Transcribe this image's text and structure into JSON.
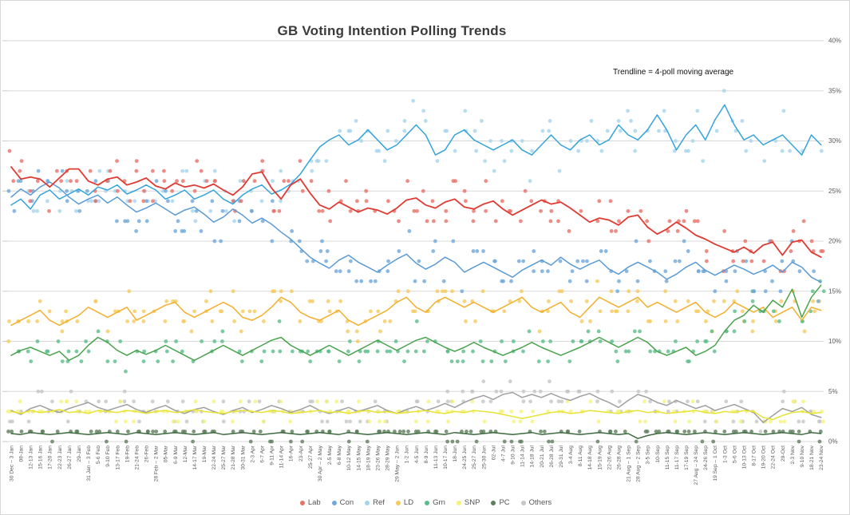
{
  "title": "GB Voting Intention Polling Trends",
  "annotation": "Trendline = 4-poll moving average",
  "chart_data": {
    "type": "scatter",
    "trendline": "4-poll moving average",
    "grid": true,
    "legend_position": "bottom",
    "y_axis": {
      "min": 0,
      "max": 40,
      "step": 5,
      "suffix": "%",
      "tick_values": [
        40,
        35,
        30,
        25,
        20,
        15,
        10,
        5,
        0
      ],
      "tick_labels": [
        "40%",
        "35%",
        "30%",
        "25%",
        "20%",
        "15%",
        "10%",
        "5%",
        "0%"
      ]
    },
    "categories": [
      "30 Dec – 3 Jan",
      "08-Jan",
      "12-13 Jan",
      "15-16 Jan",
      "17-20 Jan",
      "22-23 Jan",
      "26-27 Jan",
      "29-Jan",
      "31 Jan – 3 Feb",
      "5-6 Feb",
      "9-10 Feb",
      "13-17 Feb",
      "19-Feb",
      "21-24 Feb",
      "26-Feb",
      "28 Feb – 2 Mar",
      "05-Mar",
      "6-9 Mar",
      "12-Mar",
      "14-17 Mar",
      "19-Mar",
      "22-24 Mar",
      "25-27 Mar",
      "21-28 Mar",
      "30-31 Mar",
      "2-3 Apr",
      "6-7 Apr",
      "9-11 Apr",
      "11-14 Apr",
      "16-Apr",
      "23-Apr",
      "25-27 Apr",
      "30 Apr – 2 May",
      "2-5 May",
      "6-8 May",
      "10-12 May",
      "14-15 May",
      "18-19 May",
      "23-26 May",
      "28-29 May",
      "29 May – 2 Jun",
      "1-2 Jun",
      "4-5 Jun",
      "8-9 Jun",
      "11-13 Jun",
      "10-17 Jun",
      "18-Jun",
      "24-25 Jun",
      "25-27 Jun",
      "25-30 Jun",
      "02-Jul",
      "4-7 Jul",
      "9-10 Jul",
      "11-14 Jul",
      "14-18 Jul",
      "20-21 Jul",
      "26-28 Jul",
      "29-31 Jul",
      "3-4 Aug",
      "8-11 Aug",
      "14-18 Aug",
      "15-19 Aug",
      "22-26 Aug",
      "26-28 Aug",
      "21 Aug – 1 Sep",
      "28 Aug – 2 Sep",
      "3-5 Sep",
      "10-Sep",
      "11-15 Sep",
      "11-17 Sep",
      "17-19 Sep",
      "27 Aug – 24 Sep",
      "24-26 Sep",
      "19 Sep – 1 Oct",
      "1-3 Oct",
      "5-6 Oct",
      "10-13 Oct",
      "8-17 Oct",
      "19-20 Oct",
      "22-24 Oct",
      "29-Oct",
      "2-3 Nov",
      "9-10 Nov",
      "18-21 Nov",
      "23-24 Nov"
    ],
    "series": [
      {
        "name": "Lab",
        "line_color": "#e03b32",
        "point_color": "#e97168",
        "point_spread": 2.2,
        "trend": [
          27.4,
          26.2,
          26.4,
          26.2,
          25.4,
          26.3,
          27.2,
          27.2,
          26.0,
          25.6,
          26.2,
          26.4,
          25.6,
          25.9,
          26.3,
          25.5,
          25.2,
          25.8,
          25.4,
          25.6,
          25.3,
          25.7,
          25.1,
          24.6,
          25.4,
          26.7,
          26.9,
          25.3,
          24.2,
          25.6,
          26.2,
          24.8,
          23.6,
          23.2,
          23.9,
          23.4,
          22.9,
          23.3,
          23.1,
          22.7,
          23.3,
          24.1,
          24.3,
          23.6,
          23.3,
          23.9,
          24.2,
          23.4,
          23.2,
          23.7,
          24.0,
          23.2,
          22.6,
          23.1,
          23.6,
          24.1,
          23.7,
          23.9,
          23.3,
          22.6,
          21.9,
          22.3,
          22.1,
          21.6,
          22.4,
          22.6,
          21.4,
          20.7,
          21.2,
          21.9,
          21.3,
          20.6,
          20.2,
          19.7,
          19.3,
          18.9,
          19.4,
          18.8,
          19.6,
          19.9,
          18.6,
          19.9,
          20.1,
          18.9,
          18.4
        ]
      },
      {
        "name": "Con",
        "line_color": "#5b9bd5",
        "point_color": "#6fa8db",
        "point_spread": 2.2,
        "trend": [
          24.4,
          25.2,
          24.6,
          25.4,
          25.9,
          25.3,
          24.4,
          23.7,
          24.2,
          24.6,
          23.8,
          24.4,
          23.6,
          22.9,
          23.3,
          23.8,
          23.2,
          22.6,
          23.1,
          23.4,
          22.7,
          21.9,
          22.4,
          23.2,
          22.6,
          21.8,
          22.3,
          21.7,
          20.9,
          20.2,
          19.3,
          18.4,
          17.8,
          17.3,
          18.1,
          18.6,
          17.9,
          17.4,
          16.9,
          17.6,
          18.2,
          18.7,
          17.8,
          17.2,
          17.7,
          18.4,
          17.9,
          16.9,
          17.4,
          17.9,
          17.4,
          16.9,
          16.4,
          17.1,
          17.6,
          18.1,
          17.6,
          18.4,
          17.7,
          17.2,
          17.7,
          18.1,
          17.2,
          16.7,
          17.4,
          17.9,
          17.4,
          16.9,
          16.2,
          16.7,
          17.4,
          17.9,
          17.1,
          16.6,
          17.1,
          17.6,
          17.2,
          16.7,
          17.1,
          17.6,
          16.9,
          17.9,
          17.4,
          16.4,
          15.9
        ]
      },
      {
        "name": "Ref",
        "line_color": "#35a3dc",
        "point_color": "#a5d5ee",
        "point_spread": 2.2,
        "trend": [
          23.6,
          24.2,
          23.2,
          24.6,
          25.1,
          24.2,
          24.7,
          25.2,
          24.6,
          25.4,
          25.1,
          25.6,
          24.7,
          25.1,
          25.6,
          25.1,
          24.2,
          24.6,
          25.1,
          24.2,
          24.6,
          25.1,
          24.2,
          23.7,
          24.6,
          25.2,
          25.6,
          24.7,
          25.1,
          25.7,
          26.7,
          28.1,
          29.4,
          30.1,
          30.6,
          29.6,
          30.1,
          31.1,
          30.1,
          29.1,
          29.6,
          30.6,
          31.6,
          30.6,
          28.6,
          29.1,
          30.6,
          31.1,
          30.1,
          29.6,
          29.1,
          29.6,
          30.1,
          29.1,
          28.6,
          29.6,
          30.6,
          29.6,
          29.1,
          30.1,
          30.6,
          29.6,
          30.1,
          31.6,
          30.6,
          30.1,
          31.1,
          32.6,
          31.1,
          29.1,
          30.6,
          31.6,
          30.1,
          32.1,
          33.6,
          31.6,
          30.1,
          30.6,
          29.6,
          30.1,
          30.6,
          29.6,
          28.6,
          30.6,
          29.6
        ]
      },
      {
        "name": "LD",
        "line_color": "#f2b02e",
        "point_color": "#f6c95c",
        "point_spread": 1.6,
        "trend": [
          11.6,
          12.1,
          12.6,
          13.1,
          12.1,
          11.6,
          12.1,
          12.6,
          13.4,
          12.9,
          12.4,
          12.9,
          13.4,
          12.1,
          12.6,
          13.1,
          13.6,
          13.9,
          12.9,
          12.4,
          12.9,
          13.4,
          13.9,
          13.4,
          12.4,
          12.1,
          12.6,
          13.4,
          14.4,
          13.9,
          12.9,
          12.4,
          12.1,
          12.6,
          13.1,
          12.1,
          11.6,
          12.1,
          12.6,
          13.1,
          13.9,
          14.4,
          13.4,
          12.9,
          13.9,
          14.4,
          13.9,
          13.4,
          13.9,
          13.4,
          12.9,
          13.4,
          13.9,
          14.4,
          13.4,
          12.9,
          13.4,
          13.9,
          12.9,
          12.4,
          13.4,
          14.4,
          13.9,
          13.4,
          13.9,
          14.4,
          13.4,
          13.9,
          13.4,
          12.9,
          13.4,
          13.9,
          12.9,
          12.4,
          12.9,
          13.9,
          13.4,
          12.9,
          13.4,
          12.4,
          12.9,
          13.4,
          12.1,
          13.4,
          13.1
        ]
      },
      {
        "name": "Grn",
        "line_color": "#4aa34d",
        "point_color": "#5bbd8b",
        "point_spread": 1.5,
        "trend": [
          8.6,
          9.1,
          9.4,
          9.0,
          8.6,
          9.0,
          8.1,
          8.6,
          9.6,
          10.4,
          9.9,
          9.1,
          8.6,
          9.1,
          8.7,
          9.1,
          9.6,
          9.1,
          8.6,
          8.1,
          8.6,
          9.1,
          9.6,
          9.1,
          8.6,
          9.1,
          9.6,
          10.1,
          10.4,
          9.6,
          9.1,
          8.6,
          9.1,
          9.6,
          9.1,
          8.6,
          9.1,
          9.6,
          10.1,
          9.6,
          9.1,
          9.6,
          10.1,
          10.4,
          9.9,
          9.4,
          9.0,
          9.4,
          9.9,
          9.4,
          9.0,
          8.6,
          9.0,
          9.4,
          9.9,
          9.4,
          9.0,
          8.6,
          9.0,
          9.4,
          9.9,
          10.4,
          9.9,
          9.4,
          9.9,
          10.4,
          9.9,
          9.0,
          8.6,
          9.0,
          9.4,
          8.6,
          9.0,
          9.6,
          11.0,
          12.1,
          12.6,
          13.6,
          12.9,
          14.1,
          13.4,
          15.2,
          12.4,
          14.4,
          15.6
        ]
      },
      {
        "name": "SNP",
        "line_color": "#e8e337",
        "point_color": "#f5f27a",
        "point_spread": 0.8,
        "trend": [
          3.0,
          2.8,
          3.1,
          2.9,
          3.0,
          3.2,
          2.9,
          3.0,
          2.8,
          3.1,
          3.0,
          2.9,
          3.1,
          3.0,
          2.8,
          3.0,
          3.1,
          2.9,
          3.0,
          3.2,
          3.0,
          2.9,
          2.8,
          3.0,
          3.1,
          3.0,
          2.9,
          3.1,
          3.0,
          2.8,
          2.9,
          3.0,
          3.1,
          2.9,
          3.0,
          2.8,
          3.0,
          3.1,
          2.9,
          3.0,
          2.8,
          2.9,
          3.0,
          3.1,
          2.9,
          2.8,
          3.0,
          2.9,
          3.1,
          3.0,
          2.9,
          2.7,
          2.5,
          2.3,
          2.5,
          2.7,
          2.9,
          3.0,
          2.8,
          2.9,
          3.1,
          3.0,
          2.9,
          2.8,
          3.0,
          3.1,
          2.9,
          3.0,
          2.8,
          2.9,
          3.0,
          3.1,
          2.9,
          2.8,
          3.0,
          2.9,
          3.1,
          3.0,
          2.4,
          2.2,
          2.6,
          2.9,
          3.0,
          2.8,
          2.9
        ]
      },
      {
        "name": "PC",
        "line_color": "#3d6b40",
        "point_color": "#5f7d5c",
        "point_spread": 0.5,
        "trend": [
          0.8,
          0.7,
          0.9,
          0.8,
          0.7,
          0.8,
          0.9,
          0.8,
          0.7,
          0.8,
          0.9,
          0.8,
          0.7,
          0.9,
          0.8,
          0.7,
          0.8,
          0.9,
          0.8,
          0.7,
          0.8,
          0.9,
          0.7,
          0.8,
          0.9,
          0.8,
          0.7,
          0.8,
          0.9,
          0.8,
          0.7,
          0.8,
          0.9,
          0.8,
          0.7,
          0.9,
          0.8,
          0.7,
          0.8,
          0.9,
          0.8,
          0.7,
          0.8,
          0.9,
          0.8,
          0.7,
          0.9,
          0.8,
          0.7,
          0.8,
          0.9,
          0.8,
          0.7,
          0.8,
          0.9,
          0.7,
          0.8,
          0.9,
          0.8,
          0.7,
          0.8,
          0.9,
          0.8,
          0.7,
          0.8,
          0.3,
          0.6,
          0.8,
          0.9,
          0.8,
          0.7,
          0.8,
          0.9,
          0.8,
          0.7,
          0.8,
          0.9,
          0.8,
          0.7,
          0.8,
          0.9,
          0.8,
          0.7,
          0.9,
          0.8
        ]
      },
      {
        "name": "Others",
        "line_color": "#a0a0a0",
        "point_color": "#c6c6c6",
        "point_spread": 1.3,
        "trend": [
          3.1,
          2.7,
          3.3,
          3.6,
          3.2,
          2.9,
          3.3,
          3.6,
          3.9,
          3.4,
          3.1,
          3.4,
          3.7,
          3.2,
          2.9,
          3.3,
          3.6,
          3.1,
          2.8,
          3.2,
          3.4,
          3.0,
          2.7,
          3.1,
          3.4,
          2.9,
          3.2,
          3.6,
          3.3,
          2.9,
          3.2,
          3.6,
          3.1,
          2.8,
          3.1,
          3.4,
          3.0,
          3.3,
          3.6,
          3.1,
          2.8,
          3.2,
          3.5,
          3.1,
          3.4,
          3.8,
          3.4,
          3.9,
          4.3,
          4.6,
          4.2,
          4.7,
          4.9,
          4.4,
          4.7,
          4.4,
          4.8,
          4.4,
          4.1,
          4.5,
          4.8,
          4.3,
          3.9,
          3.4,
          4.1,
          4.7,
          4.4,
          3.9,
          3.6,
          4.1,
          3.7,
          3.3,
          3.6,
          3.1,
          3.4,
          3.7,
          3.3,
          2.9,
          1.9,
          2.6,
          3.3,
          3.0,
          3.4,
          2.7,
          2.4
        ]
      }
    ]
  }
}
